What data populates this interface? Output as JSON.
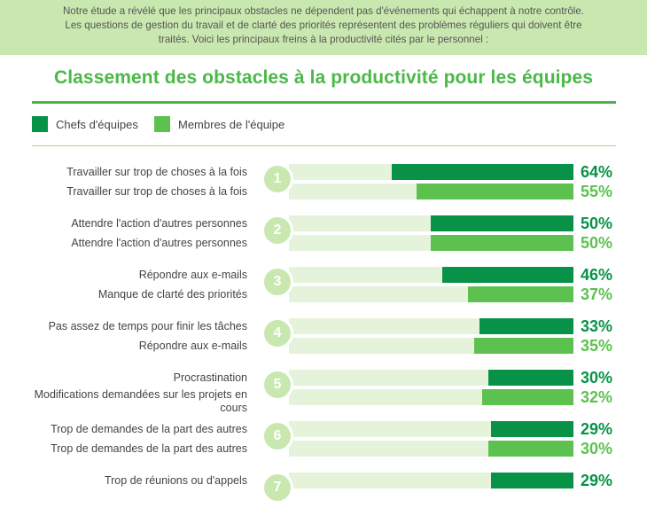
{
  "intro_text": "Notre étude a révélé que les principaux obstacles ne dépendent pas d'événements qui échappent à notre contrôle. Les questions de gestion du travail et de clarté des priorités représentent des problèmes réguliers qui doivent être traités. Voici les principaux freins à la productivité cités par le personnel :",
  "colors": {
    "leaders": "#089247",
    "members": "#5dc150",
    "track": "#e4f3da",
    "accent": "#4bb848"
  },
  "chart_data": {
    "type": "bar",
    "title": "Classement des obstacles à la productivité pour les équipes",
    "legend": [
      {
        "name": "Chefs d'équipes",
        "color": "#089247"
      },
      {
        "name": "Membres de l'équipe",
        "color": "#5dc150"
      }
    ],
    "xlim": [
      0,
      100
    ],
    "groups": [
      {
        "rank": "1",
        "leaders": {
          "label": "Travailler sur trop de choses à la fois",
          "value": 64,
          "text": "64%"
        },
        "members": {
          "label": "Travailler sur trop de choses à la fois",
          "value": 55,
          "text": "55%"
        }
      },
      {
        "rank": "2",
        "leaders": {
          "label": "Attendre l'action d'autres personnes",
          "value": 50,
          "text": "50%"
        },
        "members": {
          "label": "Attendre l'action d'autres personnes",
          "value": 50,
          "text": "50%"
        }
      },
      {
        "rank": "3",
        "leaders": {
          "label": "Répondre aux e-mails",
          "value": 46,
          "text": "46%"
        },
        "members": {
          "label": "Manque de clarté des priorités",
          "value": 37,
          "text": "37%"
        }
      },
      {
        "rank": "4",
        "leaders": {
          "label": "Pas assez de temps pour finir les tâches",
          "value": 33,
          "text": "33%"
        },
        "members": {
          "label": "Répondre aux e-mails",
          "value": 35,
          "text": "35%"
        }
      },
      {
        "rank": "5",
        "leaders": {
          "label": "Procrastination",
          "value": 30,
          "text": "30%"
        },
        "members": {
          "label": "Modifications demandées sur les projets en cours",
          "value": 32,
          "text": "32%"
        }
      },
      {
        "rank": "6",
        "leaders": {
          "label": "Trop de demandes de la part des autres",
          "value": 29,
          "text": "29%"
        },
        "members": {
          "label": "Trop de demandes de la part des autres",
          "value": 30,
          "text": "30%"
        }
      },
      {
        "rank": "7",
        "leaders": {
          "label": "Trop de réunions ou d'appels",
          "value": 29,
          "text": "29%"
        },
        "members": {
          "label": "",
          "value": null,
          "text": ""
        }
      }
    ]
  }
}
